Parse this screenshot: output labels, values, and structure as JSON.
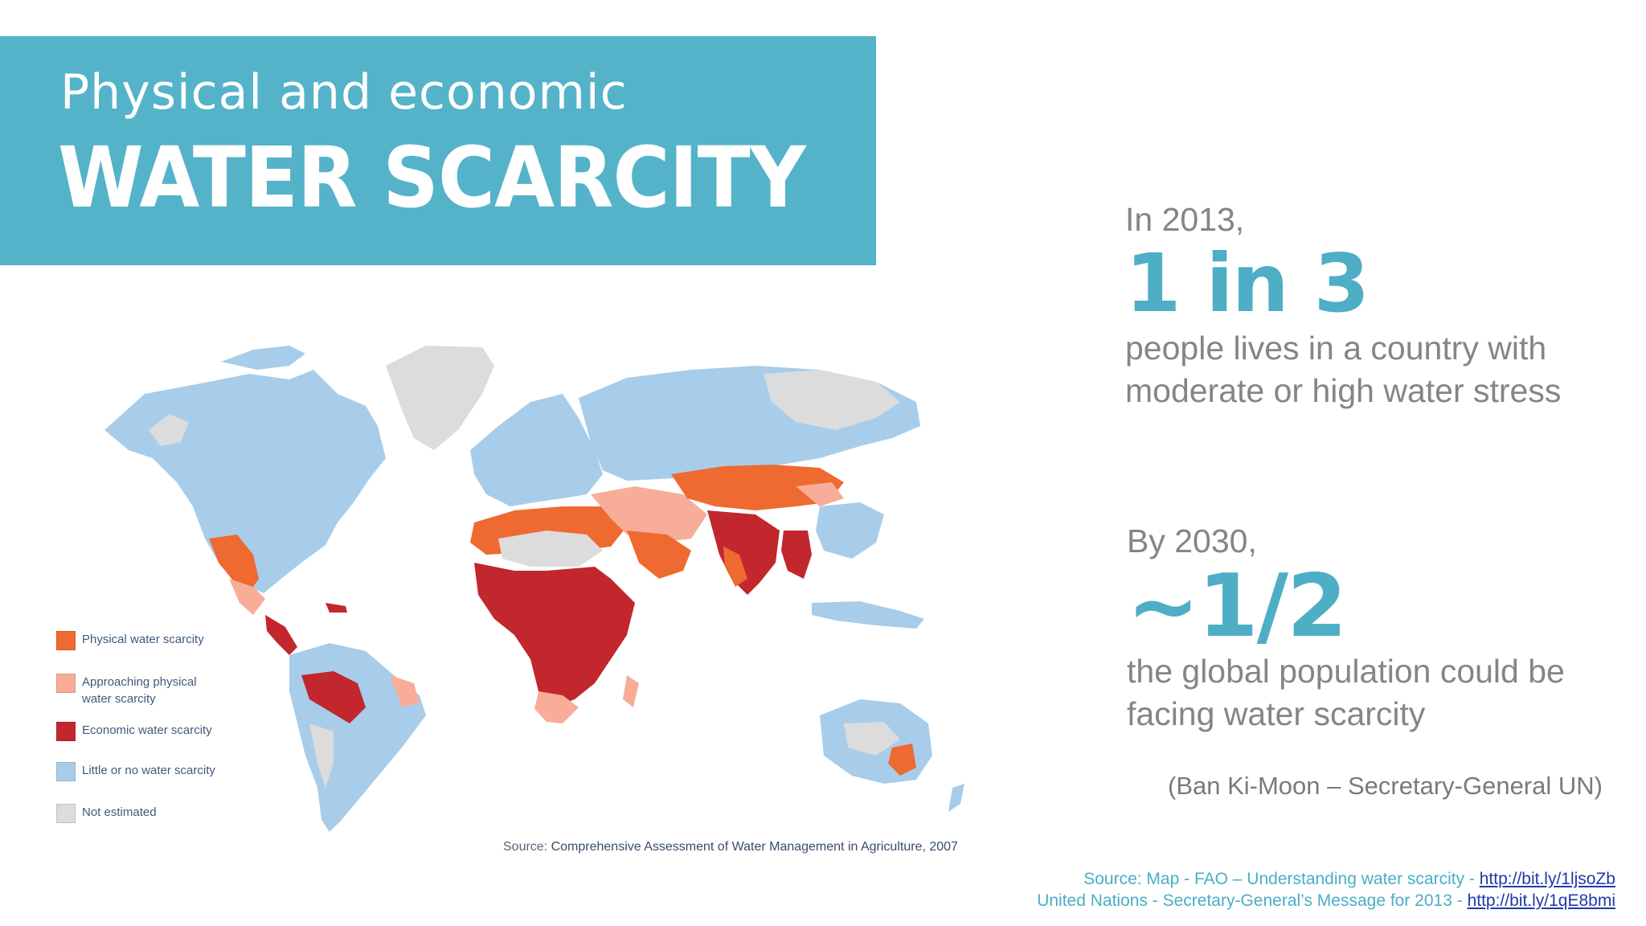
{
  "header": {
    "subtitle": "Physical and economic",
    "title": "WATER SCARCITY"
  },
  "stats": [
    {
      "intro": "In 2013,",
      "highlight": "1 in 3",
      "desc_line1": "people lives in a country with",
      "desc_line2": "moderate or high water stress"
    },
    {
      "intro": "By 2030,",
      "highlight": "~1/2",
      "desc_line1": "the global population could be",
      "desc_line2": "facing water scarcity"
    }
  ],
  "quote_author": "(Ban Ki-Moon – Secretary-General UN)",
  "map": {
    "source_label": "Source:",
    "source_text": "Comprehensive Assessment of Water Management in Agriculture, 2007",
    "legend": [
      {
        "label_line1": "Physical water scarcity",
        "label_line2": "",
        "color": "#ee6a30"
      },
      {
        "label_line1": "Approaching physical",
        "label_line2": "water scarcity",
        "color": "#f7ad98"
      },
      {
        "label_line1": "Economic water scarcity",
        "label_line2": "",
        "color": "#c1272d"
      },
      {
        "label_line1": "Little or no water scarcity",
        "label_line2": "",
        "color": "#a7cdea"
      },
      {
        "label_line1": "Not estimated",
        "label_line2": "",
        "color": "#dcdcdc"
      }
    ]
  },
  "sources": {
    "line1_text": "Source: Map - FAO – Understanding water scarcity - ",
    "line1_link": "http://bit.ly/1ljsoZb",
    "line2_text": "United Nations - Secretary-General’s Message for 2013 - ",
    "line2_link": "http://bit.ly/1qE8bmi"
  },
  "colors": {
    "accent": "#55b3c9",
    "physical": "#ee6a30",
    "approaching": "#f7ad98",
    "economic": "#c1272d",
    "little": "#a7cdea",
    "not_estimated": "#dcdcdc"
  }
}
